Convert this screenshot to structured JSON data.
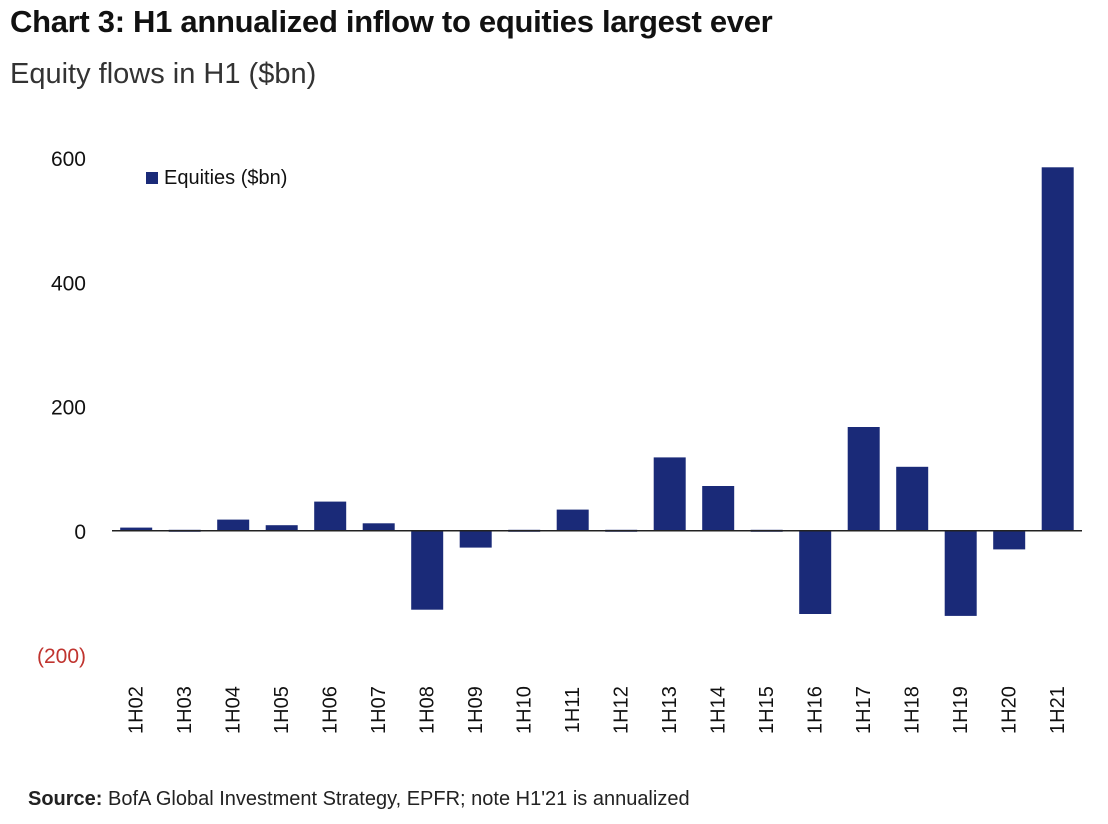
{
  "title": "Chart 3: H1 annualized inflow to equities largest ever",
  "subtitle": "Equity flows in H1 ($bn)",
  "source": {
    "label": "Source:",
    "text": " BofA Global Investment Strategy, EPFR; note H1'21 is annualized"
  },
  "chart_data": {
    "type": "bar",
    "categories": [
      "1H02",
      "1H03",
      "1H04",
      "1H05",
      "1H06",
      "1H07",
      "1H08",
      "1H09",
      "1H10",
      "1H11",
      "1H12",
      "1H13",
      "1H14",
      "1H15",
      "1H16",
      "1H17",
      "1H18",
      "1H19",
      "1H20",
      "1H21"
    ],
    "series": [
      {
        "name": "Equities ($bn)",
        "values": [
          5,
          1,
          18,
          9,
          47,
          12,
          -127,
          -27,
          -3,
          34,
          -3,
          118,
          72,
          3,
          -134,
          167,
          103,
          -137,
          -30,
          585
        ],
        "color": "#1a2a78"
      }
    ],
    "ylim": [
      -200,
      600
    ],
    "yticks": [
      {
        "value": 600,
        "label": "600",
        "color": "#111111"
      },
      {
        "value": 400,
        "label": "400",
        "color": "#111111"
      },
      {
        "value": 200,
        "label": "200",
        "color": "#111111"
      },
      {
        "value": 0,
        "label": "0",
        "color": "#111111"
      },
      {
        "value": -200,
        "label": "(200)",
        "color": "#c0342f"
      }
    ],
    "legend_position": "top-left",
    "grid": false
  }
}
